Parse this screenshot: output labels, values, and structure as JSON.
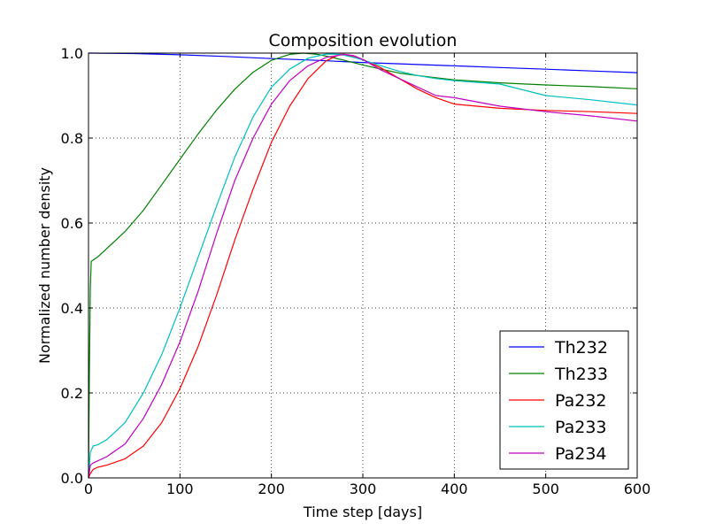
{
  "chart_data": {
    "type": "line",
    "title": "Composition evolution",
    "xlabel": "Time step [days]",
    "ylabel": "Normalized number density",
    "xlim": [
      0,
      600
    ],
    "ylim": [
      0,
      1.0
    ],
    "xticks": [
      0,
      100,
      200,
      300,
      400,
      500,
      600
    ],
    "xtick_labels": [
      "0",
      "100",
      "200",
      "300",
      "400",
      "500",
      "600"
    ],
    "yticks": [
      0,
      0.2,
      0.4,
      0.6,
      0.8,
      1.0
    ],
    "ytick_labels": [
      "0.0",
      "0.2",
      "0.4",
      "0.6",
      "0.8",
      "1.0"
    ],
    "grid": true,
    "legend_position": "bottom-right",
    "series": [
      {
        "name": "Th232",
        "color": "#0000ff",
        "x": [
          0,
          50,
          100,
          150,
          200,
          250,
          300,
          350,
          400,
          450,
          500,
          550,
          600
        ],
        "y": [
          1.0,
          0.999,
          0.996,
          0.992,
          0.987,
          0.983,
          0.978,
          0.974,
          0.97,
          0.966,
          0.962,
          0.958,
          0.954
        ]
      },
      {
        "name": "Th233",
        "color": "#008000",
        "x": [
          0,
          1,
          2,
          3,
          10,
          20,
          40,
          60,
          80,
          100,
          120,
          140,
          160,
          180,
          200,
          220,
          235,
          250,
          260,
          280,
          300,
          320,
          340,
          360,
          380,
          400,
          450,
          500,
          550,
          600
        ],
        "y": [
          0.0,
          0.25,
          0.45,
          0.51,
          0.52,
          0.54,
          0.58,
          0.63,
          0.69,
          0.75,
          0.81,
          0.866,
          0.915,
          0.955,
          0.983,
          0.997,
          1.0,
          0.997,
          0.993,
          0.983,
          0.972,
          0.962,
          0.953,
          0.947,
          0.942,
          0.937,
          0.93,
          0.925,
          0.921,
          0.916
        ]
      },
      {
        "name": "Pa232",
        "color": "#ff0000",
        "x": [
          0,
          2,
          5,
          10,
          20,
          40,
          60,
          80,
          100,
          120,
          140,
          160,
          180,
          200,
          220,
          240,
          260,
          275,
          280,
          300,
          320,
          340,
          360,
          380,
          400,
          450,
          500,
          550,
          600
        ],
        "y": [
          0.0,
          0.01,
          0.02,
          0.025,
          0.03,
          0.045,
          0.075,
          0.13,
          0.21,
          0.31,
          0.43,
          0.56,
          0.68,
          0.79,
          0.875,
          0.94,
          0.982,
          0.997,
          0.997,
          0.985,
          0.965,
          0.94,
          0.915,
          0.895,
          0.88,
          0.87,
          0.865,
          0.862,
          0.858
        ]
      },
      {
        "name": "Pa233",
        "color": "#00bfbf",
        "x": [
          0,
          2,
          5,
          10,
          20,
          40,
          60,
          80,
          100,
          120,
          140,
          160,
          180,
          200,
          220,
          240,
          260,
          275,
          290,
          300,
          320,
          340,
          360,
          380,
          400,
          450,
          500,
          550,
          600
        ],
        "y": [
          0.0,
          0.06,
          0.075,
          0.078,
          0.09,
          0.13,
          0.2,
          0.29,
          0.4,
          0.52,
          0.64,
          0.755,
          0.85,
          0.92,
          0.962,
          0.988,
          0.998,
          0.997,
          0.99,
          0.984,
          0.97,
          0.957,
          0.947,
          0.94,
          0.935,
          0.927,
          0.9,
          0.89,
          0.878
        ]
      },
      {
        "name": "Pa234",
        "color": "#bf00bf",
        "x": [
          0,
          2,
          5,
          10,
          20,
          40,
          60,
          80,
          100,
          120,
          140,
          160,
          180,
          200,
          220,
          240,
          260,
          280,
          290,
          300,
          320,
          340,
          360,
          380,
          400,
          450,
          500,
          550,
          600
        ],
        "y": [
          0.0,
          0.03,
          0.035,
          0.04,
          0.05,
          0.08,
          0.14,
          0.22,
          0.32,
          0.44,
          0.575,
          0.7,
          0.8,
          0.88,
          0.935,
          0.97,
          0.99,
          0.997,
          0.994,
          0.985,
          0.96,
          0.94,
          0.92,
          0.9,
          0.895,
          0.875,
          0.862,
          0.852,
          0.84
        ]
      }
    ]
  }
}
